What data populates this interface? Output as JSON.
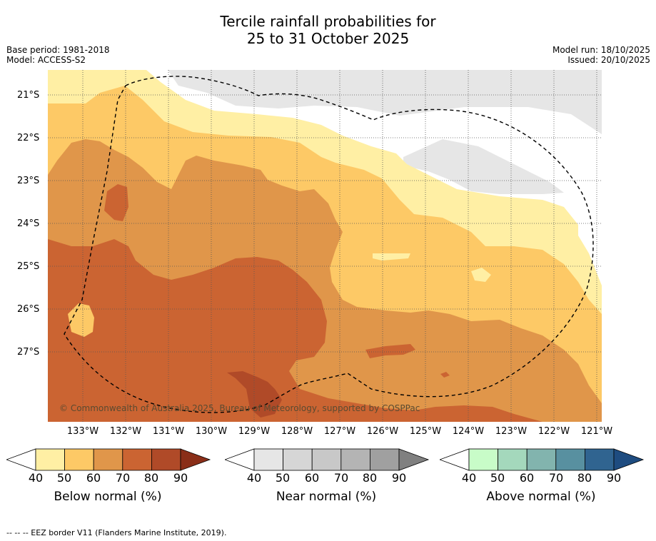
{
  "title_line1": "Tercile rainfall probabilities for",
  "title_line2": "25 to 31 October 2025",
  "base_period": "Base period: 1981-2018",
  "model": "Model: ACCESS-S2",
  "model_run": "Model run: 18/10/2025",
  "issued": "Issued: 20/10/2025",
  "copyright": "© Commonwealth of Australia 2025, Bureau of Meteorology, supported by COSPPac",
  "footer": "--  --  -- EEZ border V11 (Flanders Marine Institute, 2019).",
  "y_labels": [
    "21°S",
    "22°S",
    "23°S",
    "24°S",
    "25°S",
    "26°S",
    "27°S"
  ],
  "x_labels": [
    "133°W",
    "132°W",
    "131°W",
    "130°W",
    "129°W",
    "128°W",
    "127°W",
    "126°W",
    "125°W",
    "124°W",
    "123°W",
    "122°W",
    "121°W"
  ],
  "colorbars": {
    "below": {
      "title": "Below normal (%)",
      "colors": [
        "#ffffff",
        "#ffefa4",
        "#fdc966",
        "#e0964a",
        "#cb6432",
        "#b04a28",
        "#8a2e18"
      ],
      "ticks": [
        "40",
        "50",
        "60",
        "70",
        "80",
        "90"
      ]
    },
    "near": {
      "title": "Near normal (%)",
      "colors": [
        "#ffffff",
        "#e6e6e6",
        "#d6d6d6",
        "#c8c8c8",
        "#b4b4b4",
        "#a0a0a0",
        "#808080"
      ],
      "ticks": [
        "40",
        "50",
        "60",
        "70",
        "80",
        "90"
      ]
    },
    "above": {
      "title": "Above normal (%)",
      "colors": [
        "#ffffff",
        "#c8fcc8",
        "#a4d8bc",
        "#82b4ae",
        "#5890a0",
        "#306490",
        "#1e4c80"
      ],
      "ticks": [
        "40",
        "50",
        "60",
        "70",
        "80",
        "90"
      ]
    }
  },
  "map_colors": {
    "below40": "#ffefa4",
    "below50": "#fdc966",
    "below60": "#e0964a",
    "below70": "#cb6432",
    "below80": "#b04a28",
    "near40": "#e6e6e6",
    "white": "#ffffff"
  }
}
